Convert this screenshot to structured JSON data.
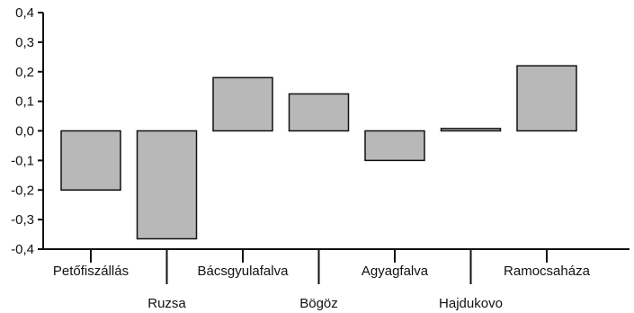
{
  "chart_data": {
    "type": "bar",
    "title": "",
    "xlabel": "",
    "ylabel": "",
    "categories": [
      "Petőfiszállás",
      "Ruzsa",
      "Bácsgyulafalva",
      "Bögöz",
      "Agyagfalva",
      "Hajdukovo",
      "Ramocsaháza"
    ],
    "values": [
      -0.2,
      -0.365,
      0.18,
      0.125,
      -0.1,
      0.008,
      0.22
    ],
    "ylim": [
      -0.4,
      0.4
    ],
    "yticks": [
      0.4,
      0.3,
      0.2,
      0.1,
      0.0,
      -0.1,
      -0.2,
      -0.3,
      -0.4
    ],
    "ytick_labels": [
      "0,4",
      "0,3",
      "0,2",
      "0,1",
      "0,0",
      "-0,1",
      "-0,2",
      "-0,3",
      "-0,4"
    ],
    "grid": false,
    "bar_color": "#b8b8b8",
    "bar_edge_color": "#111111"
  }
}
